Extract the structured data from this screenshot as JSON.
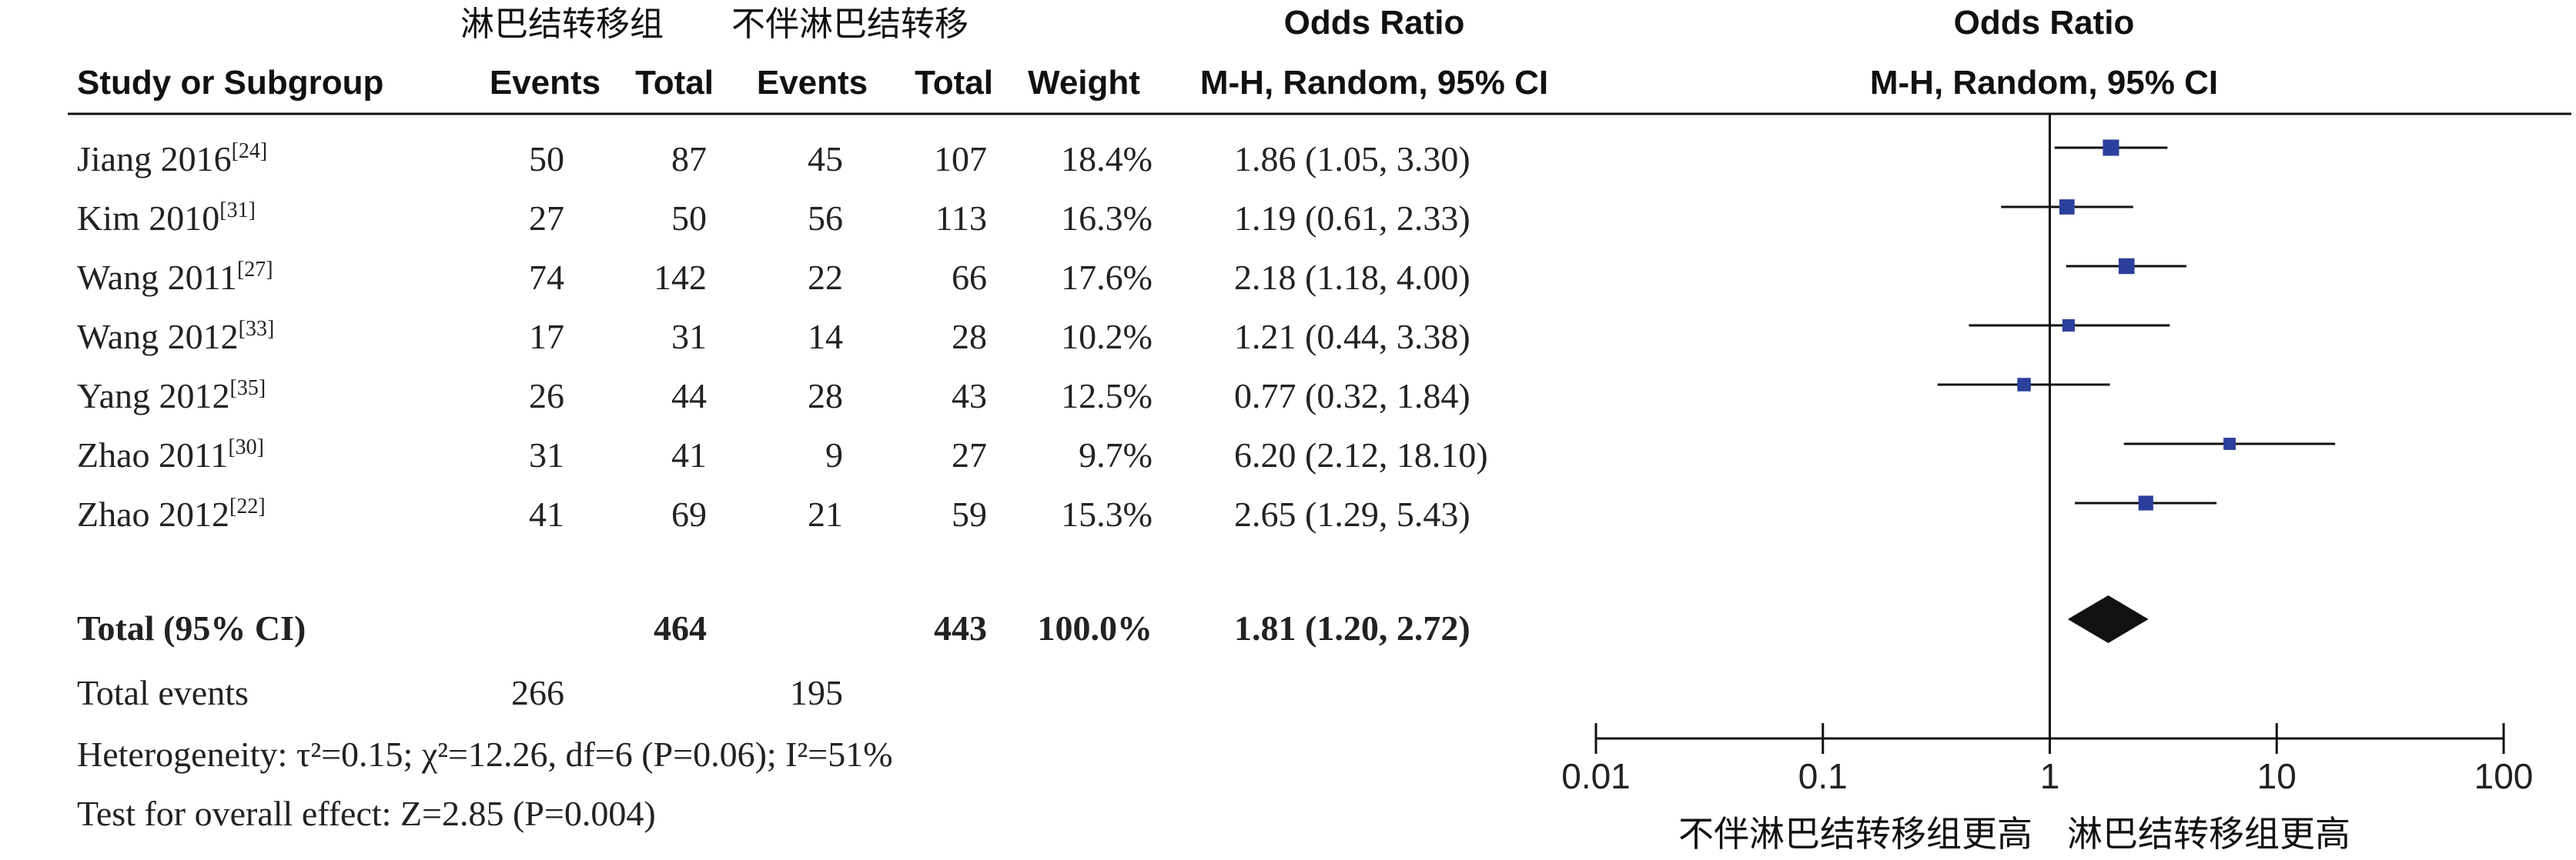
{
  "header": {
    "group1": "淋巴结转移组",
    "group2": "不伴淋巴结转移",
    "odds_ratio_title": "Odds Ratio",
    "plot_title": "Odds Ratio",
    "study_col": "Study or Subgroup",
    "events": "Events",
    "total": "Total",
    "weight": "Weight",
    "method": "M-H, Random, 95% CI",
    "plot_method": "M-H, Random, 95% CI"
  },
  "rows": [
    {
      "name": "Jiang 2016",
      "ref": "[24]",
      "e1": "50",
      "t1": "87",
      "e2": "45",
      "t2": "107",
      "weight": "18.4%",
      "ci_text": "1.86 (1.05, 3.30)"
    },
    {
      "name": "Kim 2010",
      "ref": "[31]",
      "e1": "27",
      "t1": "50",
      "e2": "56",
      "t2": "113",
      "weight": "16.3%",
      "ci_text": "1.19 (0.61, 2.33)"
    },
    {
      "name": "Wang 2011",
      "ref": "[27]",
      "e1": "74",
      "t1": "142",
      "e2": "22",
      "t2": "66",
      "weight": "17.6%",
      "ci_text": "2.18 (1.18, 4.00)"
    },
    {
      "name": "Wang 2012",
      "ref": "[33]",
      "e1": "17",
      "t1": "31",
      "e2": "14",
      "t2": "28",
      "weight": "10.2%",
      "ci_text": "1.21 (0.44, 3.38)"
    },
    {
      "name": "Yang 2012",
      "ref": "[35]",
      "e1": "26",
      "t1": "44",
      "e2": "28",
      "t2": "43",
      "weight": "12.5%",
      "ci_text": "0.77 (0.32, 1.84)"
    },
    {
      "name": "Zhao 2011",
      "ref": "[30]",
      "e1": "31",
      "t1": "41",
      "e2": "9",
      "t2": "27",
      "weight": "9.7%",
      "ci_text": "6.20 (2.12, 18.10)"
    },
    {
      "name": "Zhao 2012",
      "ref": "[22]",
      "e1": "41",
      "t1": "69",
      "e2": "21",
      "t2": "59",
      "weight": "15.3%",
      "ci_text": "2.65 (1.29, 5.43)"
    }
  ],
  "total": {
    "label": "Total (95% CI)",
    "t1": "464",
    "t2": "443",
    "weight": "100.0%",
    "ci_text": "1.81 (1.20, 2.72)"
  },
  "total_events": {
    "label": "Total events",
    "e1": "266",
    "e2": "195"
  },
  "heterogeneity": "Heterogeneity: τ²=0.15; χ²=12.26, df=6 (P=0.06); I²=51%",
  "overall_effect": "Test for overall effect: Z=2.85 (P=0.004)",
  "favours_left": "不伴淋巴结转移组更高",
  "favours_right": "淋巴结转移组更高",
  "colors": {
    "marker": "#2b3f9c",
    "diamond": "#111111",
    "line": "#111111"
  },
  "chart_data": {
    "type": "forest",
    "scale": "log",
    "xlim": [
      0.01,
      100
    ],
    "ticks": [
      {
        "value": 0.01,
        "label": "0.01"
      },
      {
        "value": 0.1,
        "label": "0.1"
      },
      {
        "value": 1,
        "label": "1"
      },
      {
        "value": 10,
        "label": "10"
      },
      {
        "value": 100,
        "label": "100"
      }
    ],
    "studies": [
      {
        "name": "Jiang 2016",
        "or": 1.86,
        "lo": 1.05,
        "hi": 3.3,
        "weight": 18.4
      },
      {
        "name": "Kim 2010",
        "or": 1.19,
        "lo": 0.61,
        "hi": 2.33,
        "weight": 16.3
      },
      {
        "name": "Wang 2011",
        "or": 2.18,
        "lo": 1.18,
        "hi": 4.0,
        "weight": 17.6
      },
      {
        "name": "Wang 2012",
        "or": 1.21,
        "lo": 0.44,
        "hi": 3.38,
        "weight": 10.2
      },
      {
        "name": "Yang 2012",
        "or": 0.77,
        "lo": 0.32,
        "hi": 1.84,
        "weight": 12.5
      },
      {
        "name": "Zhao 2011",
        "or": 6.2,
        "lo": 2.12,
        "hi": 18.1,
        "weight": 9.7
      },
      {
        "name": "Zhao 2012",
        "or": 2.65,
        "lo": 1.29,
        "hi": 5.43,
        "weight": 15.3
      }
    ],
    "pooled": {
      "or": 1.81,
      "lo": 1.2,
      "hi": 2.72
    }
  }
}
